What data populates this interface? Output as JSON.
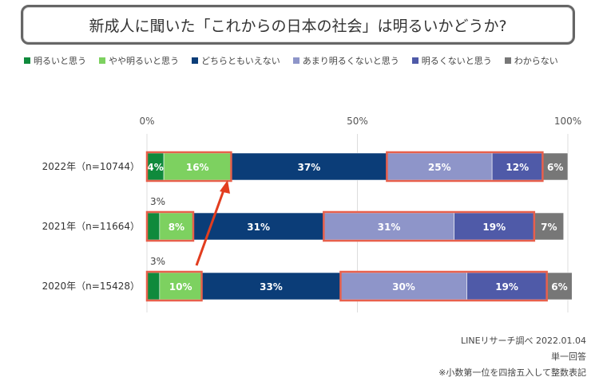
{
  "title": "新成人に聞いた「これからの日本の社会」は明るいかどうか?",
  "legend": [
    {
      "label": "明るいと思う",
      "color": "#0f8a3c"
    },
    {
      "label": "やや明るいと思う",
      "color": "#7dd160"
    },
    {
      "label": "どちらともいえない",
      "color": "#0b3d78"
    },
    {
      "label": "あまり明るくないと思う",
      "color": "#8e95c9"
    },
    {
      "label": "明るくないと思う",
      "color": "#4f5aa8"
    },
    {
      "label": "わからない",
      "color": "#777777"
    }
  ],
  "chart_data": {
    "type": "bar",
    "orientation": "horizontal",
    "stacked": true,
    "categories": [
      "2022年（n=10744）",
      "2021年（n=11664）",
      "2020年（n=15428）"
    ],
    "x_ticks": [
      "0%",
      "50%",
      "100%"
    ],
    "xlim": [
      0,
      100
    ],
    "series": [
      {
        "name": "明るいと思う",
        "values": [
          4,
          3,
          3
        ],
        "labels": [
          "4%",
          "3%",
          "3%"
        ]
      },
      {
        "name": "やや明るいと思う",
        "values": [
          16,
          8,
          10
        ],
        "labels": [
          "16%",
          "8%",
          "10%"
        ]
      },
      {
        "name": "どちらともいえない",
        "values": [
          37,
          31,
          33
        ],
        "labels": [
          "37%",
          "31%",
          "33%"
        ]
      },
      {
        "name": "あまり明るくないと思う",
        "values": [
          25,
          31,
          30
        ],
        "labels": [
          "25%",
          "31%",
          "30%"
        ]
      },
      {
        "name": "明るくないと思う",
        "values": [
          12,
          19,
          19
        ],
        "labels": [
          "12%",
          "19%",
          "19%"
        ]
      },
      {
        "name": "わからない",
        "values": [
          6,
          7,
          6
        ],
        "labels": [
          "6%",
          "7%",
          "6%"
        ]
      }
    ],
    "highlight_color": "#e8604c",
    "arrow_color": "#e23d1f"
  },
  "footer": {
    "source": "LINEリサーチ調べ 2022.01.04",
    "type": "単一回答",
    "note": "※小数第一位を四捨五入して整数表記"
  }
}
